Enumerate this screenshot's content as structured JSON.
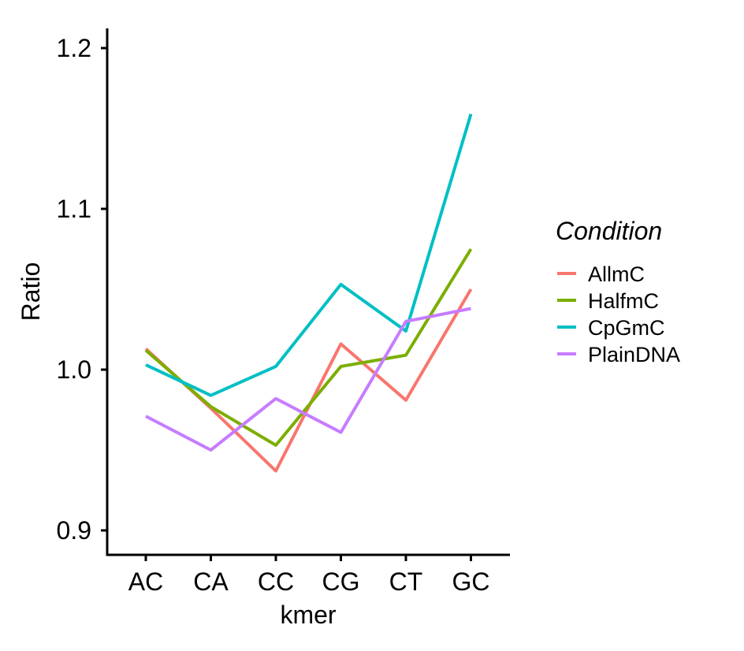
{
  "chart_data": {
    "type": "line",
    "title": "",
    "xlabel": "kmer",
    "ylabel": "Ratio",
    "categories": [
      "AC",
      "CA",
      "CC",
      "CG",
      "CT",
      "GC"
    ],
    "ylim": [
      0.885,
      1.215
    ],
    "yticks": [
      0.9,
      1.0,
      1.1,
      1.2
    ],
    "ytick_labels": [
      "0.9",
      "1.0",
      "1.1",
      "1.2"
    ],
    "grid": false,
    "legend": {
      "title": "Condition",
      "position": "right"
    },
    "series": [
      {
        "name": "AllmC",
        "color": "#F8766D",
        "values": [
          1.013,
          0.976,
          0.937,
          1.016,
          0.981,
          1.05
        ]
      },
      {
        "name": "HalfmC",
        "color": "#7CAE00",
        "values": [
          1.012,
          0.977,
          0.953,
          1.002,
          1.009,
          1.075
        ]
      },
      {
        "name": "CpGmC",
        "color": "#00BFC4",
        "values": [
          1.003,
          0.984,
          1.002,
          1.053,
          1.024,
          1.159
        ]
      },
      {
        "name": "PlainDNA",
        "color": "#C77CFF",
        "values": [
          0.971,
          0.95,
          0.982,
          0.961,
          1.03,
          1.038
        ]
      }
    ]
  }
}
